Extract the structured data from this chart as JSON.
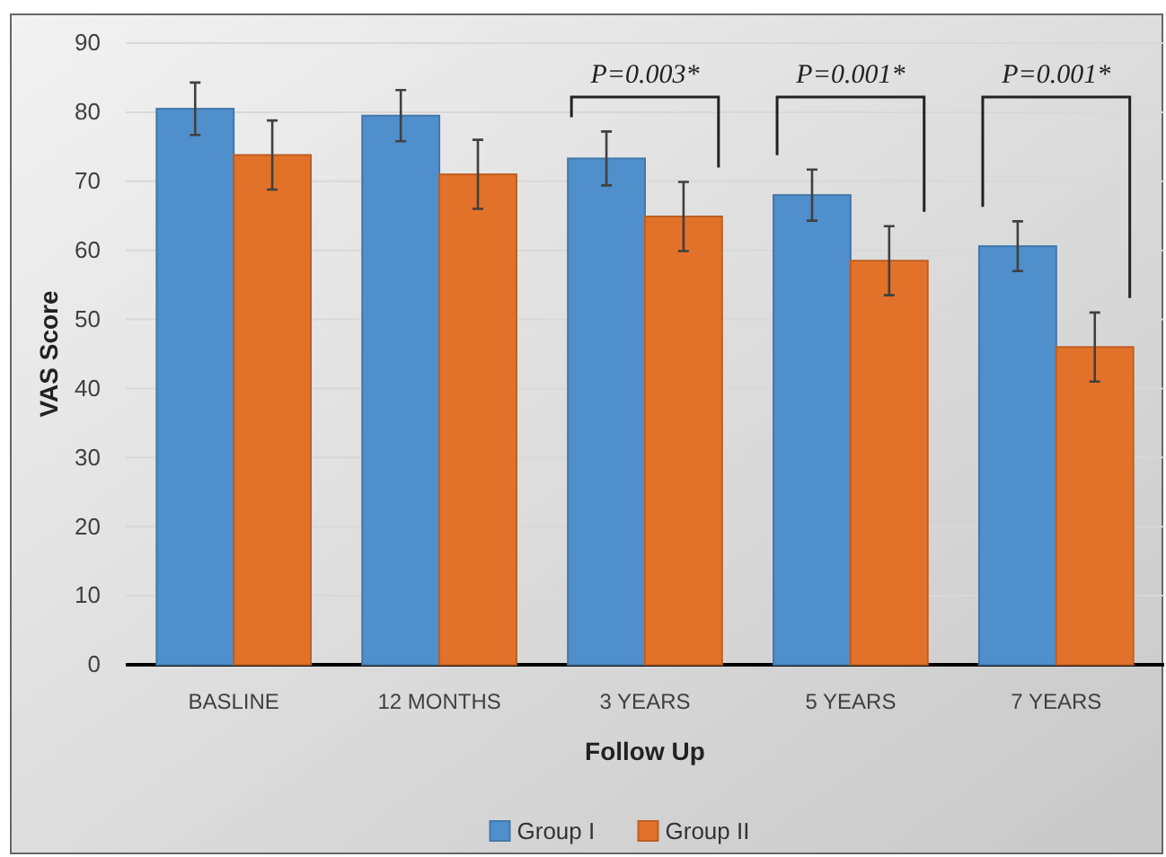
{
  "chart_data": {
    "type": "bar",
    "xlabel": "Follow Up",
    "ylabel": "VAS Score",
    "categories": [
      "BASLINE",
      "12 MONTHS",
      "3 YEARS",
      "5 YEARS",
      "7 YEARS"
    ],
    "series": [
      {
        "name": "Group I",
        "color": "#4f8fcb",
        "values": [
          80.5,
          79.5,
          73.3,
          68,
          60.6
        ],
        "errors": [
          3.8,
          3.7,
          3.9,
          3.7,
          3.6
        ]
      },
      {
        "name": "Group II",
        "color": "#e2722a",
        "values": [
          73.8,
          71,
          64.9,
          58.5,
          46
        ],
        "errors": [
          5,
          5,
          5,
          5,
          5
        ]
      }
    ],
    "ylim": [
      0,
      90
    ],
    "yticks": [
      0,
      10,
      20,
      30,
      40,
      50,
      60,
      70,
      80,
      90
    ],
    "grid": "y",
    "legend": "bottom",
    "annotations": [
      "P=0.003*",
      "P=0.001*",
      "P=0.001*"
    ]
  }
}
